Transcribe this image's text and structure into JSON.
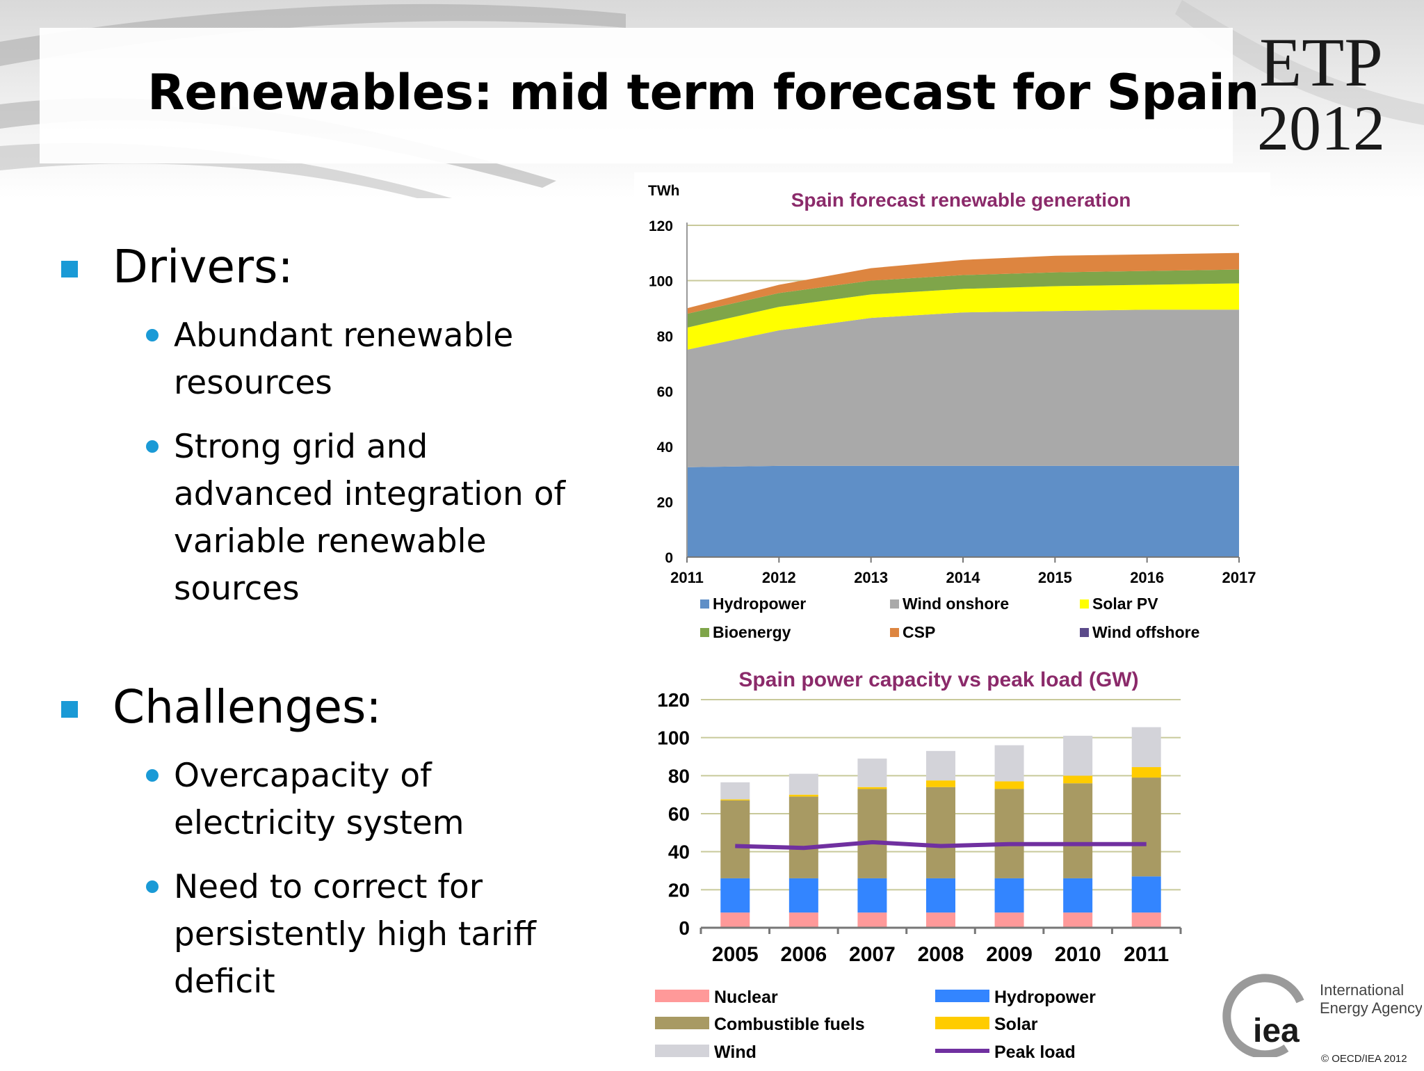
{
  "slide": {
    "title": "Renewables: mid term forecast for Spain",
    "logo": {
      "line1": "ETP",
      "line2": "2012"
    }
  },
  "sections": [
    {
      "title": "Drivers:",
      "bullets": [
        {
          "lines": [
            "Abundant renewable",
            "resources"
          ]
        },
        {
          "lines": [
            "Strong grid and",
            "advanced integration of",
            "variable renewable",
            "sources"
          ]
        }
      ]
    },
    {
      "title": "Challenges:",
      "bullets": [
        {
          "lines": [
            "Overcapacity of",
            "electricity system"
          ]
        },
        {
          "lines": [
            "Need to correct for",
            "persistently high tariff",
            "deficit"
          ]
        }
      ]
    }
  ],
  "chart_data": [
    {
      "type": "area",
      "stacked": true,
      "title": "Spain forecast renewable generation",
      "ylabel": "TWh",
      "xlabel": "",
      "x": [
        "2011",
        "2012",
        "2013",
        "2014",
        "2015",
        "2016",
        "2017"
      ],
      "yticks": [
        0,
        20,
        40,
        60,
        80,
        100,
        120
      ],
      "ylim": [
        0,
        120
      ],
      "grid": true,
      "legend_position": "bottom",
      "series": [
        {
          "name": "Hydropower",
          "color": "#5f8fc7",
          "values": [
            32.5,
            33,
            33,
            33,
            33,
            33,
            33
          ]
        },
        {
          "name": "Wind onshore",
          "color": "#a9a9a9",
          "values": [
            42.5,
            49,
            53.5,
            55.5,
            56,
            56.5,
            56.5
          ]
        },
        {
          "name": "Solar PV",
          "color": "#ffff00",
          "values": [
            8,
            8.5,
            8.5,
            8.5,
            9,
            9,
            9.5
          ]
        },
        {
          "name": "Bioenergy",
          "color": "#7fa54a",
          "values": [
            5,
            5,
            5,
            5,
            5,
            5,
            5
          ]
        },
        {
          "name": "CSP",
          "color": "#dd8540",
          "values": [
            2,
            3,
            4.5,
            5.5,
            6,
            6,
            6
          ]
        },
        {
          "name": "Wind offshore",
          "color": "#5b4a8a",
          "values": [
            0,
            0,
            0,
            0,
            0,
            0,
            0
          ]
        }
      ]
    },
    {
      "type": "bar",
      "stacked": true,
      "title": "Spain power capacity vs peak load (GW)",
      "xlabel": "",
      "ylabel": "",
      "categories": [
        "2005",
        "2006",
        "2007",
        "2008",
        "2009",
        "2010",
        "2011"
      ],
      "yticks": [
        0,
        20,
        40,
        60,
        80,
        100,
        120
      ],
      "ylim": [
        0,
        120
      ],
      "grid": true,
      "legend_position": "bottom",
      "series": [
        {
          "name": "Nuclear",
          "color": "#ff9999",
          "values": [
            8,
            8,
            8,
            8,
            8,
            8,
            8
          ]
        },
        {
          "name": "Hydropower",
          "color": "#3385ff",
          "values": [
            18,
            18,
            18,
            18,
            18,
            18,
            19
          ]
        },
        {
          "name": "Combustible fuels",
          "color": "#a89a63",
          "values": [
            41,
            43,
            47,
            48,
            47,
            50,
            52
          ]
        },
        {
          "name": "Solar",
          "color": "#ffcc00",
          "values": [
            0.5,
            1,
            1,
            3.5,
            4,
            4,
            5.5
          ]
        },
        {
          "name": "Wind",
          "color": "#d3d3d9",
          "values": [
            9,
            11,
            15,
            15.5,
            19,
            21,
            21
          ]
        }
      ],
      "line_series": [
        {
          "name": "Peak load",
          "color": "#7030a0",
          "values": [
            43,
            42,
            45,
            43,
            44,
            44,
            44
          ]
        }
      ]
    }
  ],
  "footer": {
    "org_name": [
      "International",
      "Energy Agency"
    ],
    "org_abbr": "iea",
    "copyright": "© OECD/IEA 2012"
  }
}
